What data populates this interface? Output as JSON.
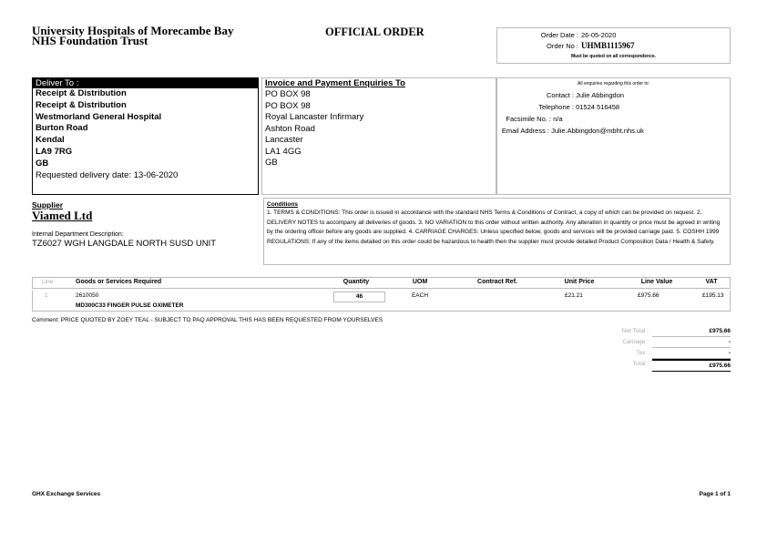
{
  "header": {
    "org_line1": "University Hospitals of Morecambe Bay",
    "org_line2": "NHS Foundation Trust",
    "doc_title": "OFFICIAL ORDER",
    "order_date_label": "Order Date :",
    "order_date": "26-05-2020",
    "order_no_label": "Order No :",
    "order_no": "UHMB1115967",
    "quote_note": "Must be quoted on all correspondence."
  },
  "deliver": {
    "title": "Deliver To :",
    "lines": [
      "Receipt & Distribution",
      "Receipt & Distribution",
      "Westmorland General Hospital",
      "Burton Road",
      "Kendal",
      "LA9 7RG",
      "GB"
    ],
    "requested": "Requested delivery date: 13-06-2020"
  },
  "invoice": {
    "title": "Invoice and Payment Enquiries To",
    "lines": [
      "PO BOX 98",
      "PO BOX 98",
      "Royal Lancaster Infirmary",
      "Ashton Road",
      "Lancaster",
      "LA1 4GG",
      "GB"
    ]
  },
  "enquiries": {
    "intro": "All enquiries regarding this order to:",
    "contact_label": "Contact :",
    "contact": "Julie Abbingdon",
    "tel_label": "Telephone :",
    "tel": "01524 516458",
    "fax_label": "Facsimile No. :",
    "fax": "n/a",
    "email_label": "Email Address :",
    "email": "Julie.Abbingdon@mbht.nhs.uk"
  },
  "supplier": {
    "label": "Supplier",
    "name": "Viamed Ltd",
    "dept_label": "Internal Department Description:",
    "dept": "TZ6027 WGH LANGDALE NORTH SUSD UNIT"
  },
  "conditions": {
    "title": "Conditions",
    "text": "1. TERMS & CONDITIONS: This order is issued in accordance with the standard NHS Terms & Conditions of Contract, a copy of which can be provided on request. 2. DELIVERY NOTES to accompany all deliveries of goods. 3. NO VARIATION to this order without written authority. Any alteration in quantity or price must be agreed in writing by the ordering officer before any goods are supplied. 4. CARRIAGE CHARGES: Unless specified below, goods and services will be provided carriage paid. 5. COSHH 1999 REGULATIONS: If any of the items detailed on this order could be hazardous to health then the supplier must provide detailed Product Composition Data / Health & Safety."
  },
  "table": {
    "headers": [
      "Line",
      "Goods or Services Required",
      "Quantity",
      "UOM",
      "Contract Ref.",
      "Unit Price",
      "Line Value",
      "VAT"
    ],
    "rows": [
      {
        "line": "1",
        "code": "2610050",
        "desc": "MD300C33 FINGER PULSE OXIMETER",
        "qty": "46",
        "uom": "EACH",
        "contract": "",
        "unit_price": "£21.21",
        "line_value": "£975.66",
        "vat": "£195.13"
      }
    ]
  },
  "comment": "Comment: PRICE QUOTED BY ZOEY TEAL - SUBJECT TO PAQ APPROVAL THIS HAS BEEN REQUESTED FROM YOURSELVES",
  "totals": {
    "net_label": "Net Total :",
    "net": "£975.66",
    "carriage_label": "Carriage :",
    "carriage": "-",
    "tax_label": "Tax :",
    "tax": "-",
    "total_label": "Total :",
    "total": "£975.66"
  },
  "footer": {
    "left": "GHX Exchange Services",
    "right": "Page 1 of 1"
  }
}
